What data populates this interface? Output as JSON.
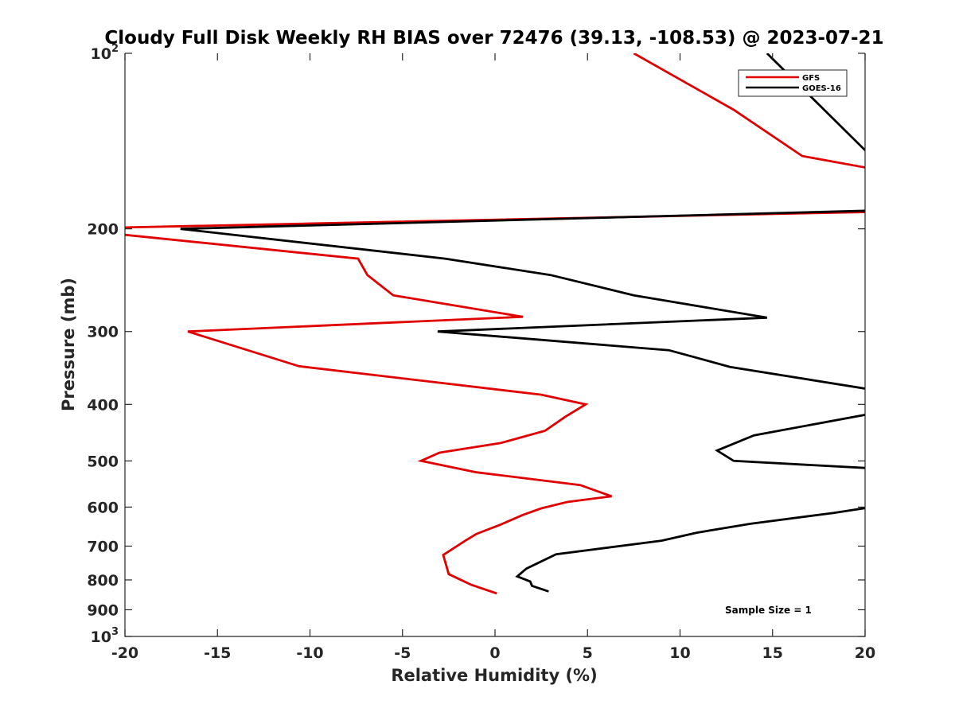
{
  "chart_data": {
    "type": "line",
    "title": "Cloudy Full Disk Weekly RH BIAS over 72476 (39.13, -108.53) @ 2023-07-21",
    "xlabel": "Relative Humidity (%)",
    "ylabel": "Pressure (mb)",
    "xlim": [
      -20,
      20
    ],
    "ylim": [
      100,
      1000
    ],
    "yscale": "log",
    "y_reversed": true,
    "x_ticks": [
      -20,
      -15,
      -10,
      -5,
      0,
      5,
      10,
      15,
      20
    ],
    "x_tick_labels": [
      "-20",
      "-15",
      "-10",
      "-5",
      "0",
      "5",
      "10",
      "15",
      "20"
    ],
    "y_ticks": [
      100,
      200,
      300,
      400,
      500,
      600,
      700,
      800,
      900,
      1000
    ],
    "y_tick_labels": [
      {
        "base": "10",
        "exp": "2"
      },
      {
        "text": "200"
      },
      {
        "text": "300"
      },
      {
        "text": "400"
      },
      {
        "text": "500"
      },
      {
        "text": "600"
      },
      {
        "text": "700"
      },
      {
        "text": "800"
      },
      {
        "text": "900"
      },
      {
        "base": "10",
        "exp": "3"
      }
    ],
    "legend": {
      "placement": "top-right"
    },
    "annotation": "Sample Size = 1",
    "grid": false,
    "series": [
      {
        "name": "GFS",
        "color": "#e00000",
        "points": [
          [
            7.5,
            100
          ],
          [
            12.9,
            125
          ],
          [
            16.6,
            150
          ],
          [
            20.5,
            158
          ],
          [
            20.5,
            187
          ],
          [
            -20.5,
            199
          ],
          [
            -20.5,
            204
          ],
          [
            -7.4,
            225
          ],
          [
            -6.9,
            240
          ],
          [
            -5.5,
            260
          ],
          [
            1.5,
            283
          ],
          [
            -16.6,
            300
          ],
          [
            -10.6,
            344
          ],
          [
            2.5,
            385
          ],
          [
            4.9,
            400
          ],
          [
            3.8,
            420
          ],
          [
            2.7,
            444
          ],
          [
            0.3,
            466
          ],
          [
            -3.0,
            484
          ],
          [
            -4.0,
            500
          ],
          [
            -1.0,
            523
          ],
          [
            4.6,
            550
          ],
          [
            6.3,
            575
          ],
          [
            3.9,
            588
          ],
          [
            2.5,
            603
          ],
          [
            1.5,
            619
          ],
          [
            0.3,
            643
          ],
          [
            -1.0,
            667
          ],
          [
            -1.6,
            685
          ],
          [
            -2.8,
            725
          ],
          [
            -2.5,
            782
          ],
          [
            -1.3,
            815
          ],
          [
            0.1,
            844
          ]
        ]
      },
      {
        "name": "GOES-16",
        "color": "#000000",
        "points": [
          [
            14.7,
            100
          ],
          [
            20.5,
            152
          ],
          [
            20.5,
            186
          ],
          [
            -17.0,
            200
          ],
          [
            -2.7,
            225
          ],
          [
            3.0,
            240
          ],
          [
            7.5,
            260
          ],
          [
            14.7,
            284
          ],
          [
            -3.1,
            300
          ],
          [
            9.4,
            323
          ],
          [
            12.7,
            345
          ],
          [
            20.5,
            378
          ],
          [
            20.5,
            414
          ],
          [
            14.0,
            452
          ],
          [
            12.0,
            480
          ],
          [
            12.9,
            500
          ],
          [
            20.5,
            515
          ],
          [
            20.5,
            599
          ],
          [
            18.3,
            614
          ],
          [
            13.8,
            641
          ],
          [
            10.9,
            664
          ],
          [
            9.0,
            685
          ],
          [
            3.3,
            723
          ],
          [
            1.7,
            765
          ],
          [
            1.2,
            789
          ],
          [
            1.9,
            805
          ],
          [
            2.0,
            819
          ],
          [
            2.9,
            837
          ]
        ]
      }
    ]
  }
}
